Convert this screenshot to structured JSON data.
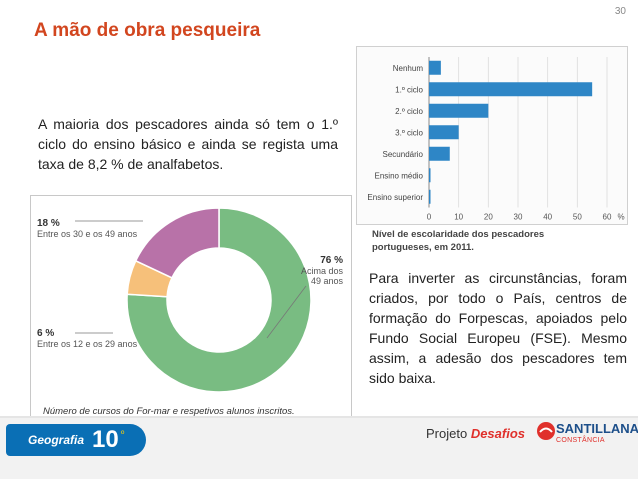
{
  "page_number": "30",
  "title": "A mão de obra pesqueira",
  "intro_text": "A maioria dos pescadores ainda só tem o 1.º ciclo do ensino básico e ainda se regista uma taxa de 8,2 % de analfabetos.",
  "body_text": "Para inverter as circunstâncias, foram criados, por todo o País, centros de formação do Forpescas, apoiados pelo Fundo Social Europeu (FSE). Mesmo assim, a adesão dos pescadores tem sido baixa.",
  "chart_data": [
    {
      "type": "bar",
      "orientation": "horizontal",
      "title": "",
      "categories": [
        "Nenhum",
        "1.º ciclo",
        "2.º ciclo",
        "3.º ciclo",
        "Secundário",
        "Ensino médio",
        "Ensino superior"
      ],
      "values": [
        4,
        55,
        20,
        10,
        7,
        0.3,
        0.5
      ],
      "xlabel": "%",
      "xlim": [
        0,
        60
      ],
      "xticks": [
        0,
        10,
        20,
        30,
        40,
        50,
        60
      ],
      "caption": "Nível de escolaridade dos pescadores portugueses, em 2011.",
      "color": "#2e86c6"
    },
    {
      "type": "pie",
      "style": "donut",
      "slices": [
        {
          "label": "Acima dos 49 anos",
          "value": 76,
          "value_label": "76 %",
          "color": "#79bc82"
        },
        {
          "label": "Entre os 12 e os 29 anos",
          "value": 6,
          "value_label": "6 %",
          "color": "#f6c07a"
        },
        {
          "label": "Entre os 30 e os 49 anos",
          "value": 18,
          "value_label": "18 %",
          "color": "#b872a8"
        }
      ],
      "caption": "Número de cursos do For-mar e respetivos alunos inscritos."
    }
  ],
  "footer": {
    "subject": "Geografia",
    "grade": "10",
    "grade_sup": "º",
    "project_prefix": "Projeto ",
    "project_name": "Desafios",
    "brand": "SANTILLANA",
    "brand_sub": "CONSTÂNCIA"
  }
}
